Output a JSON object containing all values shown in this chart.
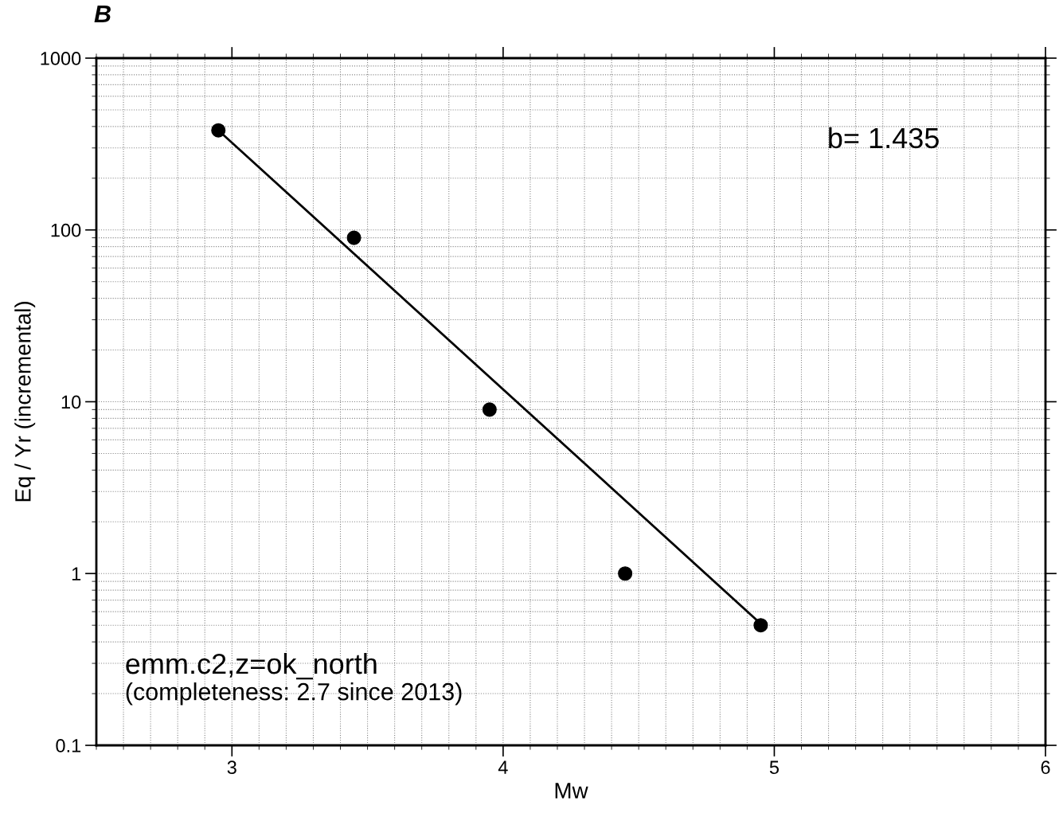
{
  "chart_data": {
    "type": "scatter",
    "title": "B",
    "xlabel": "Mw",
    "ylabel": "Eq / Yr (incremental)",
    "log": "y",
    "grid": true,
    "xlim": [
      2.5,
      6
    ],
    "xticks": [
      3,
      4,
      5,
      6
    ],
    "ylim": [
      0.1,
      1000
    ],
    "yticks": [
      0.1,
      1,
      10,
      100,
      1000
    ],
    "series": [
      {
        "color": "#000000",
        "marker": "circle",
        "x": [
          2.95,
          3.45,
          3.95,
          4.45,
          4.95
        ],
        "values": [
          380,
          90,
          9,
          1,
          0.5
        ]
      },
      {
        "type": "line",
        "color": "#000000",
        "x": [
          2.95,
          4.95
        ],
        "values": [
          380,
          0.51
        ]
      }
    ],
    "annotations": [
      "b= 1.435",
      "emm.c2,z=ok_north",
      "(completeness: 2.7 since 2013)"
    ]
  }
}
